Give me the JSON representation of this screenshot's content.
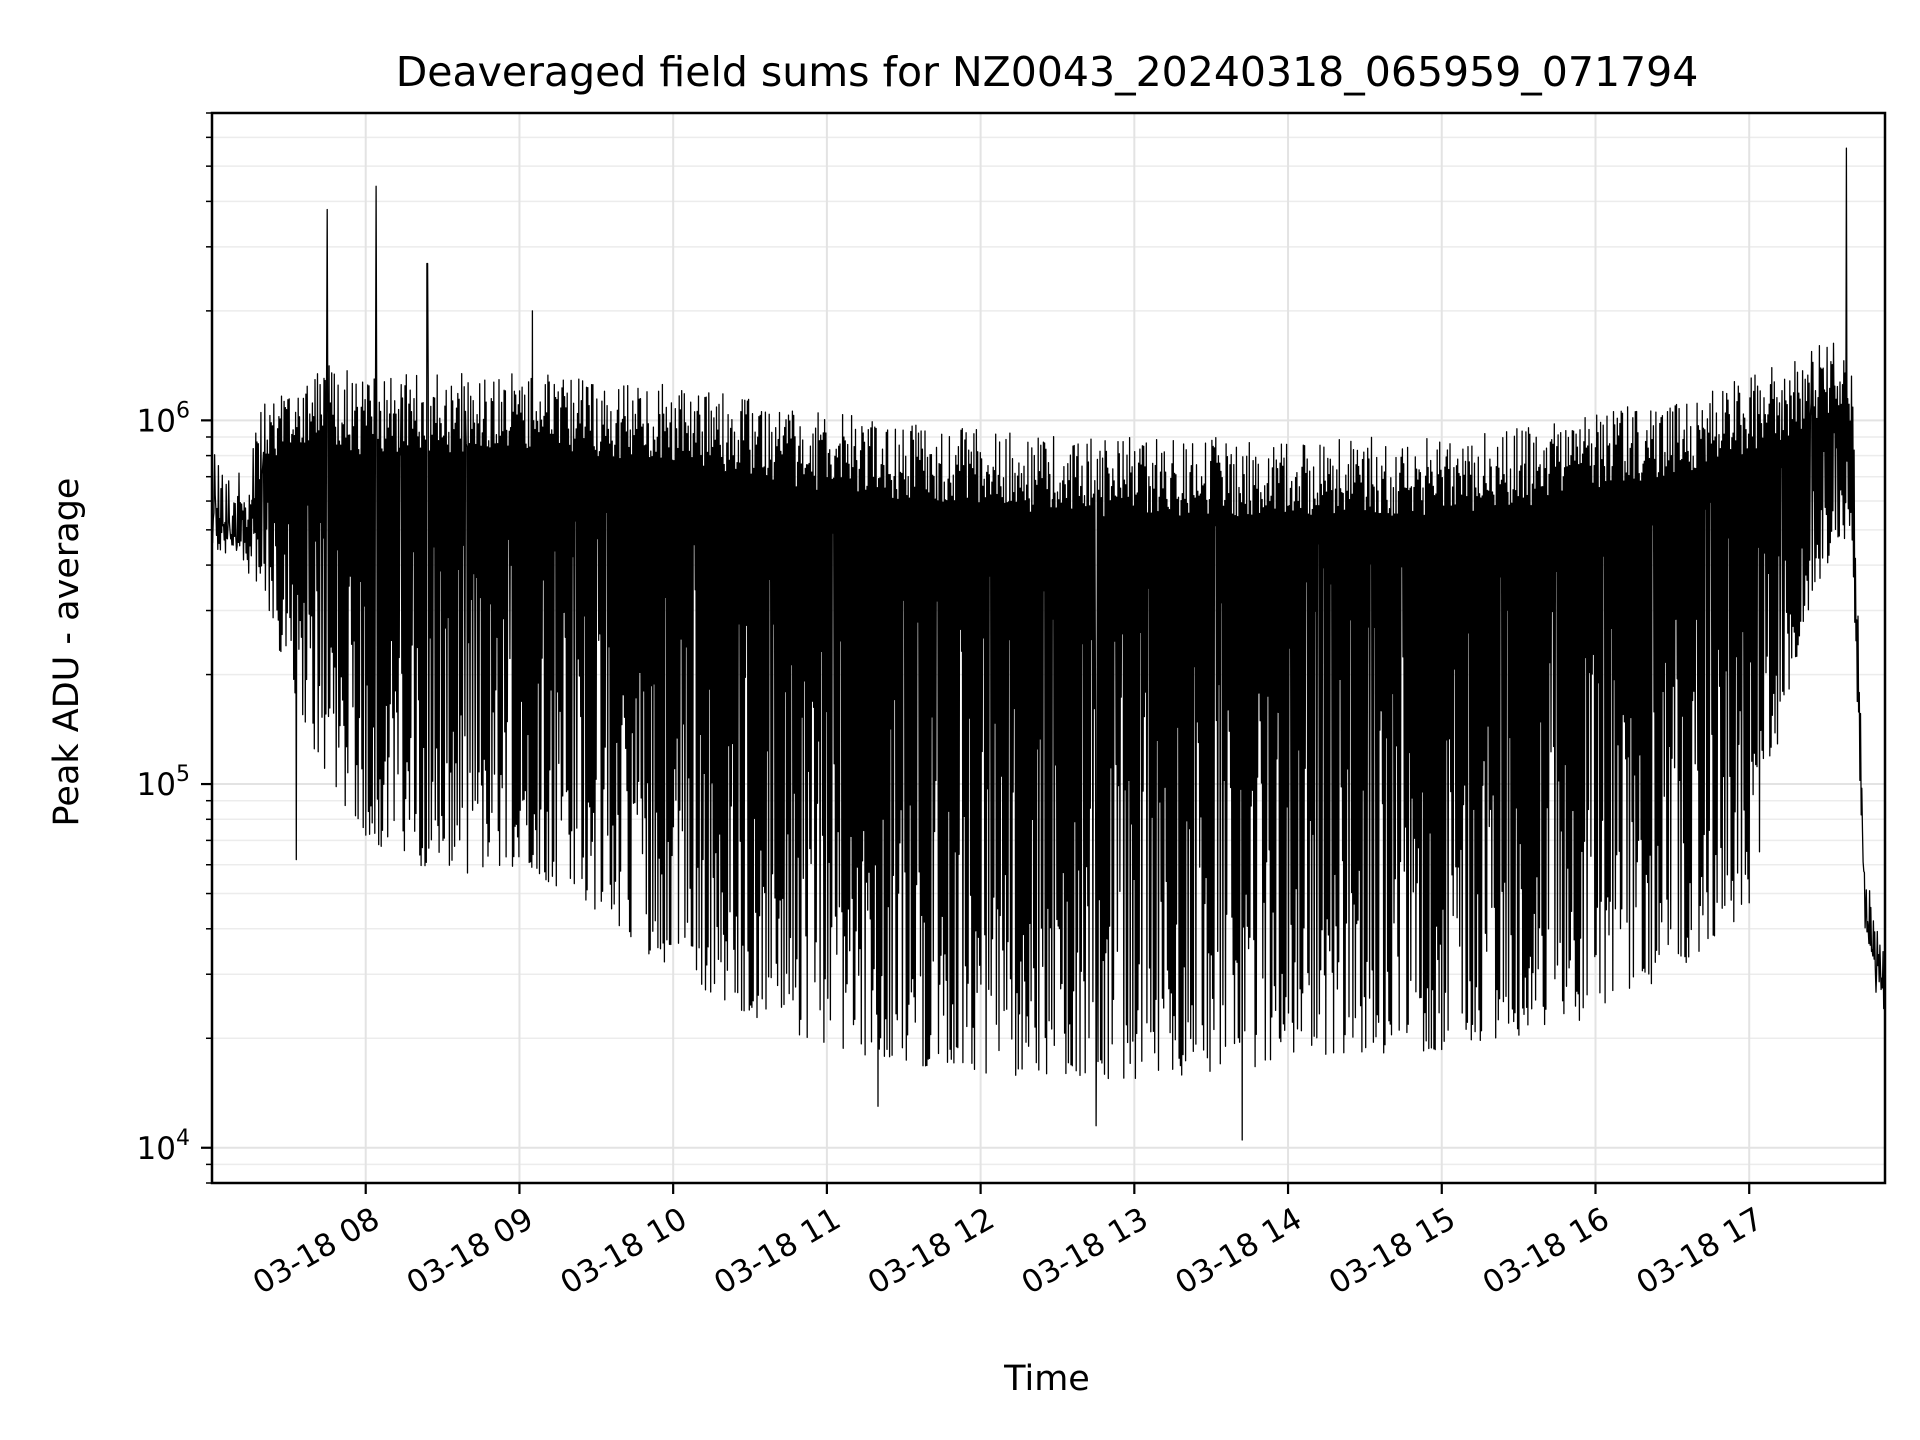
{
  "chart_data": {
    "type": "line",
    "title": "Deaveraged field sums for NZ0043_20240318_065959_071794",
    "xlabel": "Time",
    "ylabel": "Peak ADU - average",
    "yscale": "log",
    "ylim": [
      8000,
      7000000
    ],
    "xlim": [
      "2024-03-18 07:00",
      "2024-03-18 17:53"
    ],
    "xtick_values": [
      "2024-03-18 08:00",
      "2024-03-18 09:00",
      "2024-03-18 10:00",
      "2024-03-18 11:00",
      "2024-03-18 12:00",
      "2024-03-18 13:00",
      "2024-03-18 14:00",
      "2024-03-18 15:00",
      "2024-03-18 16:00",
      "2024-03-18 17:00"
    ],
    "xtick_labels": [
      "03-18 08",
      "03-18 09",
      "03-18 10",
      "03-18 11",
      "03-18 12",
      "03-18 13",
      "03-18 14",
      "03-18 15",
      "03-18 16",
      "03-18 17"
    ],
    "ytick_values": [
      10000,
      100000,
      1000000
    ],
    "ytick_labels": [
      {
        "base": "10",
        "exp": "4"
      },
      {
        "base": "10",
        "exp": "5"
      },
      {
        "base": "10",
        "exp": "6"
      }
    ],
    "grid": true,
    "line_color": "#000000",
    "series": [
      {
        "upper_envelope": {
          "x": [
            "2024-03-18 07:00",
            "2024-03-18 07:10",
            "2024-03-18 07:20",
            "2024-03-18 07:30",
            "2024-03-18 07:40",
            "2024-03-18 07:50",
            "2024-03-18 08:00",
            "2024-03-18 08:20",
            "2024-03-18 08:40",
            "2024-03-18 09:00",
            "2024-03-18 09:30",
            "2024-03-18 10:00",
            "2024-03-18 10:30",
            "2024-03-18 11:00",
            "2024-03-18 11:30",
            "2024-03-18 12:00",
            "2024-03-18 12:30",
            "2024-03-18 13:00",
            "2024-03-18 13:30",
            "2024-03-18 14:00",
            "2024-03-18 14:30",
            "2024-03-18 15:00",
            "2024-03-18 15:30",
            "2024-03-18 16:00",
            "2024-03-18 16:30",
            "2024-03-18 17:00",
            "2024-03-18 17:20",
            "2024-03-18 17:30",
            "2024-03-18 17:40",
            "2024-03-18 17:45",
            "2024-03-18 17:53"
          ],
          "y": [
            900000,
            700000,
            1100000,
            1300000,
            1500000,
            1400000,
            1300000,
            1350000,
            1350000,
            1350000,
            1300000,
            1250000,
            1150000,
            1050000,
            1000000,
            950000,
            900000,
            900000,
            900000,
            900000,
            900000,
            900000,
            950000,
            1050000,
            1150000,
            1350000,
            1500000,
            1700000,
            1600000,
            60000,
            35000
          ]
        },
        "lower_envelope": {
          "x": [
            "2024-03-18 07:00",
            "2024-03-18 07:10",
            "2024-03-18 07:20",
            "2024-03-18 07:30",
            "2024-03-18 07:40",
            "2024-03-18 07:50",
            "2024-03-18 08:00",
            "2024-03-18 08:20",
            "2024-03-18 08:40",
            "2024-03-18 09:00",
            "2024-03-18 09:30",
            "2024-03-18 10:00",
            "2024-03-18 10:30",
            "2024-03-18 11:00",
            "2024-03-18 11:30",
            "2024-03-18 12:00",
            "2024-03-18 12:30",
            "2024-03-18 13:00",
            "2024-03-18 13:30",
            "2024-03-18 14:00",
            "2024-03-18 14:30",
            "2024-03-18 15:00",
            "2024-03-18 15:30",
            "2024-03-18 16:00",
            "2024-03-18 16:30",
            "2024-03-18 17:00",
            "2024-03-18 17:20",
            "2024-03-18 17:30",
            "2024-03-18 17:40",
            "2024-03-18 17:45",
            "2024-03-18 17:53"
          ],
          "y": [
            400000,
            450000,
            300000,
            200000,
            120000,
            90000,
            70000,
            60000,
            55000,
            60000,
            45000,
            30000,
            23000,
            19000,
            17000,
            16000,
            15500,
            15500,
            16000,
            17000,
            18000,
            18500,
            20000,
            23000,
            30000,
            45000,
            250000,
            400000,
            500000,
            40000,
            25000
          ]
        },
        "spikes": [
          {
            "x": "2024-03-18 07:45",
            "y": 3800000
          },
          {
            "x": "2024-03-18 08:04",
            "y": 4400000
          },
          {
            "x": "2024-03-18 08:24",
            "y": 2700000
          },
          {
            "x": "2024-03-18 09:05",
            "y": 2000000
          },
          {
            "x": "2024-03-18 17:38",
            "y": 5600000
          },
          {
            "x": "2024-03-18 11:20",
            "y": 13000
          },
          {
            "x": "2024-03-18 12:45",
            "y": 11500
          },
          {
            "x": "2024-03-18 13:42",
            "y": 10500
          },
          {
            "x": "2024-03-18 07:33",
            "y": 62000
          }
        ]
      }
    ]
  }
}
